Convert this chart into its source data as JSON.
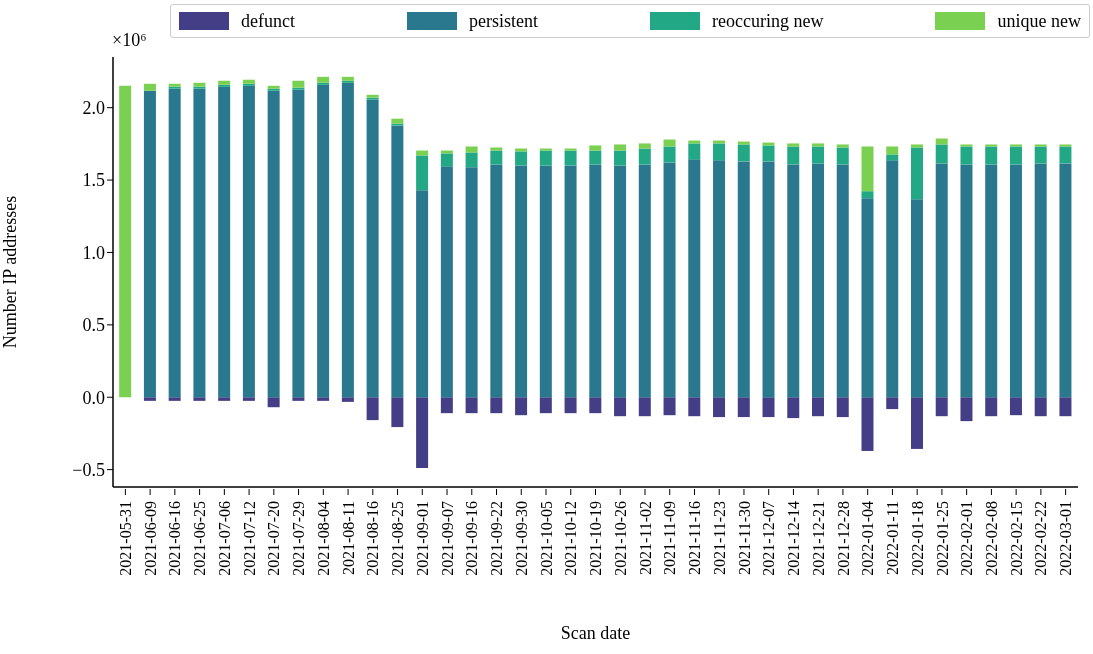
{
  "chart_data": {
    "type": "bar",
    "stacked": true,
    "categories": [
      "2021-05-31",
      "2021-06-09",
      "2021-06-16",
      "2021-06-25",
      "2021-07-06",
      "2021-07-12",
      "2021-07-20",
      "2021-07-29",
      "2021-08-04",
      "2021-08-11",
      "2021-08-16",
      "2021-08-25",
      "2021-09-01",
      "2021-09-07",
      "2021-09-16",
      "2021-09-22",
      "2021-09-30",
      "2021-10-05",
      "2021-10-12",
      "2021-10-19",
      "2021-10-26",
      "2021-11-02",
      "2021-11-09",
      "2021-11-16",
      "2021-11-23",
      "2021-11-30",
      "2021-12-07",
      "2021-12-14",
      "2021-12-21",
      "2021-12-28",
      "2022-01-04",
      "2022-01-11",
      "2022-01-18",
      "2022-01-25",
      "2022-02-01",
      "2022-02-08",
      "2022-02-15",
      "2022-02-22",
      "2022-03-01"
    ],
    "series": [
      {
        "name": "defunct",
        "color": "#433e85",
        "values": [
          0,
          -0.025,
          -0.025,
          -0.025,
          -0.025,
          -0.025,
          -0.069,
          -0.025,
          -0.025,
          -0.032,
          -0.158,
          -0.206,
          -0.488,
          -0.11,
          -0.11,
          -0.11,
          -0.124,
          -0.11,
          -0.11,
          -0.11,
          -0.131,
          -0.131,
          -0.124,
          -0.131,
          -0.137,
          -0.137,
          -0.137,
          -0.144,
          -0.131,
          -0.137,
          -0.371,
          -0.082,
          -0.357,
          -0.131,
          -0.165,
          -0.131,
          -0.124,
          -0.131,
          -0.131
        ]
      },
      {
        "name": "persistent",
        "color": "#2a788e",
        "values": [
          0,
          2.117,
          2.131,
          2.131,
          2.144,
          2.151,
          2.117,
          2.124,
          2.158,
          2.172,
          2.055,
          1.876,
          1.43,
          1.595,
          1.588,
          1.608,
          1.601,
          1.601,
          1.601,
          1.608,
          1.601,
          1.608,
          1.622,
          1.643,
          1.636,
          1.629,
          1.629,
          1.608,
          1.615,
          1.608,
          1.375,
          1.636,
          1.368,
          1.615,
          1.608,
          1.608,
          1.608,
          1.615,
          1.615
        ]
      },
      {
        "name": "reoccuring new",
        "color": "#22a884",
        "values": [
          0,
          0,
          0.014,
          0.014,
          0.014,
          0.014,
          0.014,
          0.014,
          0.014,
          0.014,
          0.014,
          0.014,
          0.24,
          0.089,
          0.103,
          0.096,
          0.097,
          0.103,
          0.103,
          0.096,
          0.103,
          0.11,
          0.11,
          0.11,
          0.117,
          0.117,
          0.11,
          0.124,
          0.117,
          0.117,
          0.048,
          0.041,
          0.357,
          0.131,
          0.124,
          0.124,
          0.124,
          0.117,
          0.117
        ]
      },
      {
        "name": "unique new",
        "color": "#7ad151",
        "values": [
          2.151,
          0.048,
          0.02,
          0.027,
          0.028,
          0.028,
          0.02,
          0.048,
          0.041,
          0.027,
          0.02,
          0.034,
          0.034,
          0.02,
          0.041,
          0.021,
          0.02,
          0.014,
          0.014,
          0.035,
          0.042,
          0.035,
          0.048,
          0.02,
          0.02,
          0.02,
          0.02,
          0.021,
          0.021,
          0.021,
          0.309,
          0.055,
          0.021,
          0.041,
          0.014,
          0.014,
          0.014,
          0.014,
          0.014
        ]
      }
    ],
    "xlabel": "Scan date",
    "ylabel": "Number IP addresses",
    "annotations": [
      "×10⁶"
    ],
    "ylim": [
      -0.62,
      2.35
    ],
    "yticks": [
      {
        "value": -0.5,
        "label": "−0.5"
      },
      {
        "value": 0,
        "label": "0.0"
      },
      {
        "value": 0.5,
        "label": "0.5"
      },
      {
        "value": 1,
        "label": "1.0"
      },
      {
        "value": 1.5,
        "label": "1.5"
      },
      {
        "value": 2,
        "label": "2.0"
      }
    ],
    "legend": "top"
  }
}
